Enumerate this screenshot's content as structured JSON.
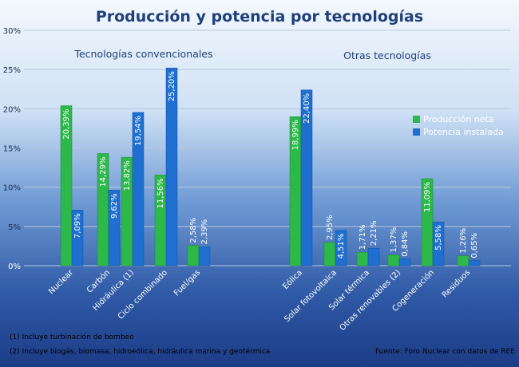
{
  "chart_data": {
    "type": "bar",
    "title": "Producción y potencia por tecnologías",
    "ylim": [
      0,
      30
    ],
    "yticks": [
      "0%",
      "5%",
      "10%",
      "15%",
      "20%",
      "25%",
      "30%"
    ],
    "groups": [
      {
        "label": "Tecnologías convencionales",
        "categories": [
          "Nuclear",
          "Carbón",
          "Hidráulica (1)",
          "Ciclo combinado",
          "Fuel/gas"
        ]
      },
      {
        "label": "Otras tecnologías",
        "categories": [
          "Eólica",
          "Solar fotovoltaica",
          "Solar térmica",
          "Otras renovables (2)",
          "Cogeneración",
          "Residuos"
        ]
      }
    ],
    "categories": [
      "Nuclear",
      "Carbón",
      "Hidráulica (1)",
      "Ciclo combinado",
      "Fuel/gas",
      "Eólica",
      "Solar fotovoltaica",
      "Solar térmica",
      "Otras renovables (2)",
      "Cogeneración",
      "Residuos"
    ],
    "series": [
      {
        "name": "Producción neta",
        "color": "#2db84a",
        "values": [
          20.39,
          14.29,
          13.82,
          11.56,
          2.58,
          18.99,
          2.95,
          1.71,
          1.37,
          11.09,
          1.26
        ],
        "labels": [
          "20,39%",
          "14,29%",
          "13,82%",
          "11,56%",
          "2,58%",
          "18,99%",
          "2,95%",
          "1,71%",
          "1,37%",
          "11,09%",
          "1,26%"
        ]
      },
      {
        "name": "Potencia instalada",
        "color": "#1f6fd0",
        "values": [
          7.09,
          9.62,
          19.54,
          25.2,
          2.39,
          22.4,
          4.51,
          2.21,
          0.84,
          5.58,
          0.65
        ],
        "labels": [
          "7,09%",
          "9,62%",
          "19,54%",
          "25,20%",
          "2,39%",
          "22,40%",
          "4,51%",
          "2,21%",
          "0,84%",
          "5,58%",
          "0,65%"
        ]
      }
    ],
    "legend_position": "right",
    "grid": true
  },
  "notes": {
    "note1": "(1) Incluye turbinación de bombeo",
    "note2": "(2) Incluye biogás, biomasa, hidroeólica, hidráulica marina y geotérmica",
    "source": "Fuente:  Foro Nuclear con datos de REE"
  }
}
